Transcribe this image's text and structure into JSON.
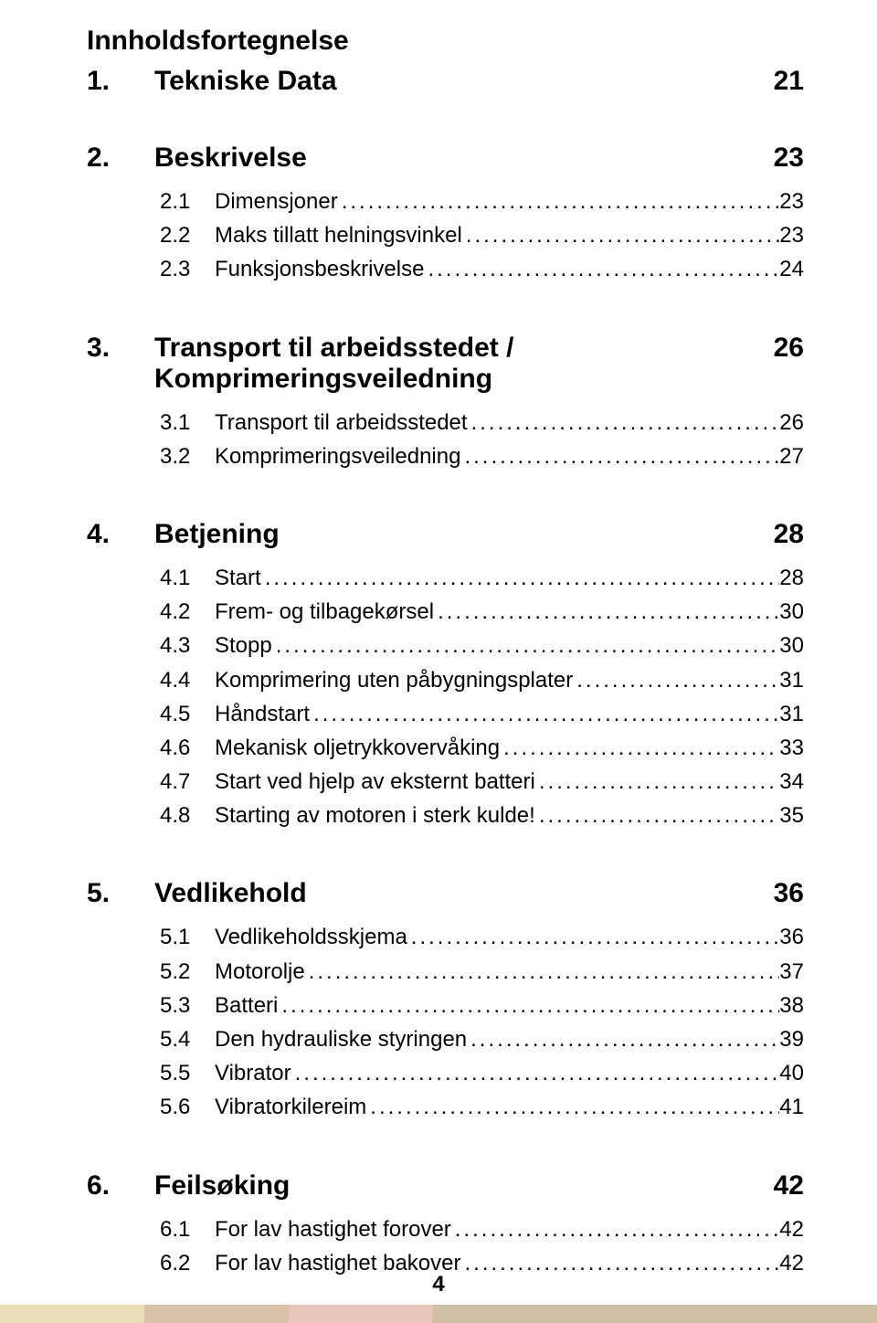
{
  "title": "Innholdsfortegnelse",
  "pageNumber": "4",
  "colors": {
    "text": "#000000",
    "background": "#ffffff",
    "bar1": "#e8deb8",
    "bar2": "#d8c2aa",
    "bar3": "#e8c7ba",
    "bar4": "#d0bea7"
  },
  "typography": {
    "title_fontsize": 30,
    "section_fontsize": 30,
    "row_fontsize": 24,
    "font_family": "Arial"
  },
  "sections": [
    {
      "num": "1.",
      "title": "Tekniske Data",
      "page": "21",
      "items": []
    },
    {
      "num": "2.",
      "title": "Beskrivelse",
      "page": "23",
      "items": [
        {
          "num": "2.1",
          "label": "Dimensjoner",
          "page": "23"
        },
        {
          "num": "2.2",
          "label": "Maks tillatt helningsvinkel",
          "page": "23"
        },
        {
          "num": "2.3",
          "label": "Funksjonsbeskrivelse",
          "page": "24"
        }
      ]
    },
    {
      "num": "3.",
      "title": "Transport til arbeidsstedet / Komprimeringsveiledning",
      "page": "26",
      "items": [
        {
          "num": "3.1",
          "label": "Transport til arbeidsstedet",
          "page": "26"
        },
        {
          "num": "3.2",
          "label": "Komprimeringsveiledning",
          "page": "27"
        }
      ]
    },
    {
      "num": "4.",
      "title": "Betjening",
      "page": "28",
      "items": [
        {
          "num": "4.1",
          "label": "Start",
          "page": "28"
        },
        {
          "num": "4.2",
          "label": "Frem- og tilbagekørsel",
          "page": "30"
        },
        {
          "num": "4.3",
          "label": "Stopp",
          "page": "30"
        },
        {
          "num": "4.4",
          "label": "Komprimering uten påbygningsplater",
          "page": "31"
        },
        {
          "num": "4.5",
          "label": "Håndstart",
          "page": "31"
        },
        {
          "num": "4.6",
          "label": "Mekanisk oljetrykkovervåking",
          "page": "33"
        },
        {
          "num": "4.7",
          "label": "Start ved hjelp av eksternt batteri",
          "page": "34"
        },
        {
          "num": "4.8",
          "label": "Starting av motoren i sterk kulde!",
          "page": "35"
        }
      ]
    },
    {
      "num": "5.",
      "title": "Vedlikehold",
      "page": "36",
      "items": [
        {
          "num": "5.1",
          "label": "Vedlikeholdsskjema",
          "page": "36"
        },
        {
          "num": "5.2",
          "label": "Motorolje",
          "page": "37"
        },
        {
          "num": "5.3",
          "label": "Batteri",
          "page": "38"
        },
        {
          "num": "5.4",
          "label": "Den hydrauliske styringen",
          "page": "39"
        },
        {
          "num": "5.5",
          "label": "Vibrator",
          "page": "40"
        },
        {
          "num": "5.6",
          "label": "Vibratorkilereim",
          "page": "41"
        }
      ]
    },
    {
      "num": "6.",
      "title": "Feilsøking",
      "page": "42",
      "items": [
        {
          "num": "6.1",
          "label": "For lav hastighet forover",
          "page": "42"
        },
        {
          "num": "6.2",
          "label": "For lav hastighet bakover",
          "page": "42"
        }
      ]
    }
  ]
}
